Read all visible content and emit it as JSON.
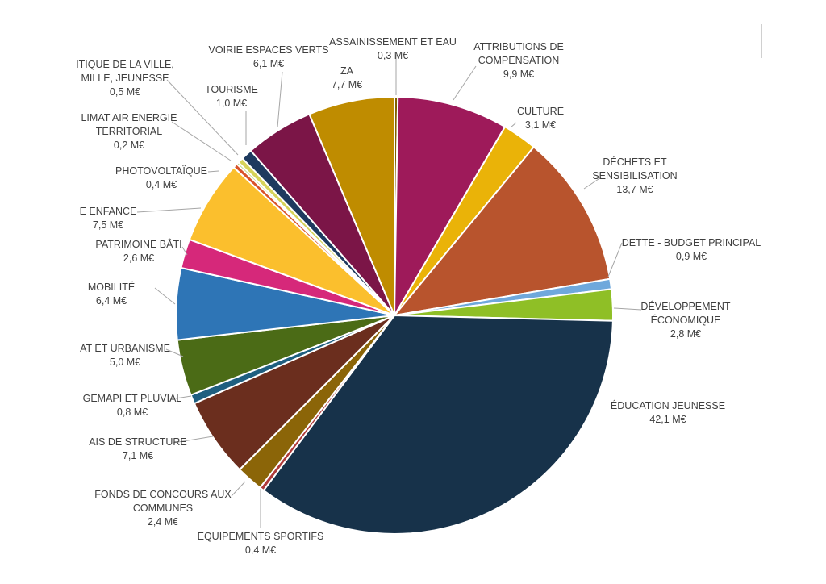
{
  "chart_data": {
    "type": "pie",
    "unit": "M€",
    "slices": [
      {
        "name": "ASSAINISSEMENT ET EAU",
        "value_label": "0,3  M€",
        "value": 0.3,
        "color": "#7f6000"
      },
      {
        "name": "ATTRIBUTIONS DE COMPENSATION",
        "value_label": "9,9  M€",
        "value": 9.9,
        "color": "#9e1a5a"
      },
      {
        "name": "CULTURE",
        "value_label": "3,1  M€",
        "value": 3.1,
        "color": "#eab308"
      },
      {
        "name": "DÉCHETS ET SENSIBILISATION",
        "value_label": "13,7  M€",
        "value": 13.7,
        "color": "#b8542d"
      },
      {
        "name": "DETTE - BUDGET PRINCIPAL",
        "value_label": "0,9  M€",
        "value": 0.9,
        "color": "#6fa8dc"
      },
      {
        "name": "DÉVELOPPEMENT ÉCONOMIQUE",
        "value_label": "2,8  M€",
        "value": 2.8,
        "color": "#8fbf26"
      },
      {
        "name": "ÉDUCATION JEUNESSE",
        "value_label": "42,1  M€",
        "value": 42.1,
        "color": "#17324a"
      },
      {
        "name": "EQUIPEMENTS SPORTIFS",
        "value_label": "0,4  M€",
        "value": 0.4,
        "color": "#b03a3a"
      },
      {
        "name": "FONDS DE CONCOURS AUX COMMUNES",
        "value_label": "2,4  M€",
        "value": 2.4,
        "color": "#8b6508"
      },
      {
        "name": "AIS DE STRUCTURE",
        "value_label": "7,1  M€",
        "value": 7.1,
        "color": "#6b2e1e"
      },
      {
        "name": "GEMAPI ET PLUVIAL",
        "value_label": "0,8  M€",
        "value": 0.8,
        "color": "#1f5f80"
      },
      {
        "name": "AT ET URBANISME",
        "value_label": "5,0  M€",
        "value": 5.0,
        "color": "#4b6b16"
      },
      {
        "name": "MOBILITÉ",
        "value_label": "6,4  M€",
        "value": 6.4,
        "color": "#2e75b6"
      },
      {
        "name": "PATRIMOINE BÂTI",
        "value_label": "2,6  M€",
        "value": 2.6,
        "color": "#d6287a"
      },
      {
        "name": "E ENFANCE",
        "value_label": "7,5  M€",
        "value": 7.5,
        "color": "#fbbf2d"
      },
      {
        "name": "PHOTOVOLTAÏQUE",
        "value_label": "0,4  M€",
        "value": 0.4,
        "color": "#d9532b"
      },
      {
        "name": "LIMAT AIR ENERGIE TERRITORIAL",
        "value_label": "0,2  M€",
        "value": 0.2,
        "color": "#a5c94a"
      },
      {
        "name": "ITIQUE DE LA VILLE, MILLE, JEUNESSE",
        "value_label": "0,5  M€",
        "value": 0.5,
        "color": "#d6d35a"
      },
      {
        "name": "TOURISME",
        "value_label": "1,0  M€",
        "value": 1.0,
        "color": "#1e3a5f"
      },
      {
        "name": "VOIRIE ESPACES VERTS",
        "value_label": "6,1  M€",
        "value": 6.1,
        "color": "#7b1547"
      },
      {
        "name": "ZA",
        "value_label": "7,7  M€",
        "value": 7.7,
        "color": "#bf8c00"
      }
    ],
    "legend": "none"
  },
  "labels": [
    {
      "lines": [
        "ASSAINISSEMENT ET EAU",
        "0,3  M€"
      ]
    },
    {
      "lines": [
        "ATTRIBUTIONS DE",
        "COMPENSATION",
        "9,9  M€"
      ]
    },
    {
      "lines": [
        "CULTURE",
        "3,1  M€"
      ]
    },
    {
      "lines": [
        "DÉCHETS ET",
        "SENSIBILISATION",
        "13,7  M€"
      ]
    },
    {
      "lines": [
        "DETTE - BUDGET PRINCIPAL",
        "0,9  M€"
      ]
    },
    {
      "lines": [
        "DÉVELOPPEMENT",
        "ÉCONOMIQUE",
        "2,8  M€"
      ]
    },
    {
      "lines": [
        "ÉDUCATION JEUNESSE",
        "42,1  M€"
      ]
    },
    {
      "lines": [
        "EQUIPEMENTS SPORTIFS",
        "0,4  M€"
      ]
    },
    {
      "lines": [
        "FONDS DE CONCOURS AUX",
        "COMMUNES",
        "2,4  M€"
      ]
    },
    {
      "lines": [
        "AIS DE STRUCTURE",
        "7,1  M€"
      ]
    },
    {
      "lines": [
        "GEMAPI ET PLUVIAL",
        "0,8  M€"
      ]
    },
    {
      "lines": [
        "AT ET URBANISME",
        "5,0  M€"
      ]
    },
    {
      "lines": [
        "MOBILITÉ",
        "6,4  M€"
      ]
    },
    {
      "lines": [
        "PATRIMOINE BÂTI",
        "2,6  M€"
      ]
    },
    {
      "lines": [
        "E ENFANCE",
        "7,5  M€"
      ]
    },
    {
      "lines": [
        "PHOTOVOLTAÏQUE",
        "0,4  M€"
      ]
    },
    {
      "lines": [
        "LIMAT AIR ENERGIE",
        "TERRITORIAL",
        "0,2  M€"
      ]
    },
    {
      "lines": [
        "ITIQUE DE LA VILLE,",
        "MILLE, JEUNESSE",
        "0,5  M€"
      ]
    },
    {
      "lines": [
        "TOURISME",
        "1,0  M€"
      ]
    },
    {
      "lines": [
        "VOIRIE ESPACES VERTS",
        "6,1  M€"
      ]
    },
    {
      "lines": [
        "ZA",
        "7,7  M€"
      ]
    }
  ]
}
